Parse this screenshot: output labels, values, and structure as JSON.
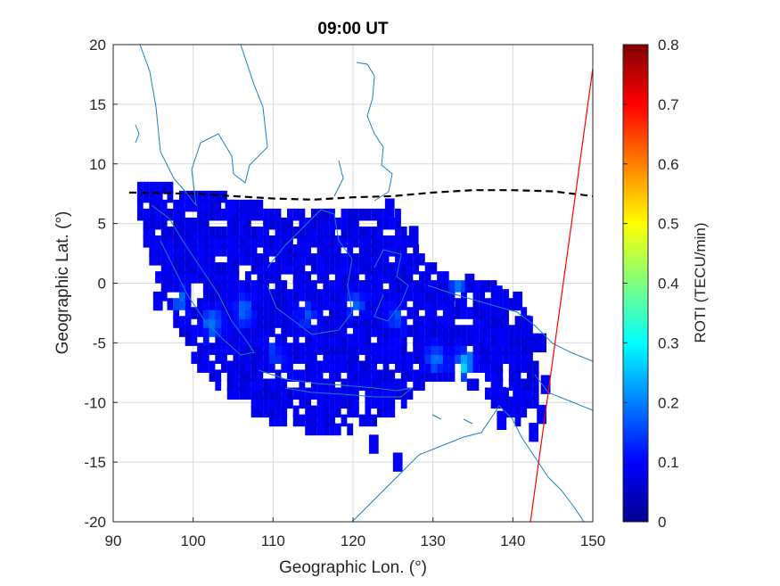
{
  "chart_data": {
    "type": "heatmap",
    "title": "09:00 UT",
    "xlabel": "Geographic Lon. (°)",
    "ylabel": "Geographic Lat. (°)",
    "colorbar_label": "ROTI (TECU/min)",
    "xlim": [
      90,
      150
    ],
    "ylim": [
      -20,
      20
    ],
    "clim": [
      0,
      0.8
    ],
    "colormap": "jet",
    "grid": true,
    "x_ticks": [
      "90",
      "100",
      "110",
      "120",
      "130",
      "140",
      "150"
    ],
    "y_ticks": [
      "20",
      "15",
      "10",
      "5",
      "0",
      "-5",
      "-10",
      "-15",
      "-20"
    ],
    "colorbar_ticks": [
      "0.8",
      "0.7",
      "0.6",
      "0.5",
      "0.4",
      "0.3",
      "0.2",
      "0.1",
      "0"
    ],
    "coastline_color": "#1f7fbf",
    "region": {
      "description_points_lon_lat": [
        [
          92,
          8
        ],
        [
          96,
          8
        ],
        [
          104,
          7
        ],
        [
          110,
          6
        ],
        [
          118,
          6
        ],
        [
          125,
          6
        ],
        [
          128,
          2
        ],
        [
          132,
          0
        ],
        [
          137,
          0
        ],
        [
          142,
          -3
        ],
        [
          143,
          -10
        ],
        [
          140,
          -12
        ],
        [
          135,
          -9
        ],
        [
          130,
          -8
        ],
        [
          125,
          -11
        ],
        [
          118,
          -13
        ],
        [
          110,
          -12
        ],
        [
          104,
          -10
        ],
        [
          100,
          -7
        ],
        [
          97,
          -3
        ],
        [
          94,
          2
        ]
      ],
      "typical_roti": 0.08
    },
    "hotspots": [
      {
        "lon": 102,
        "lat": -3.5,
        "roti": 0.2
      },
      {
        "lon": 106,
        "lat": -2.5,
        "roti": 0.18
      },
      {
        "lon": 114,
        "lat": -3,
        "roti": 0.16
      },
      {
        "lon": 120,
        "lat": -2,
        "roti": 0.17
      },
      {
        "lon": 125,
        "lat": -3,
        "roti": 0.15
      },
      {
        "lon": 133.5,
        "lat": -7,
        "roti": 0.26
      },
      {
        "lon": 133,
        "lat": 0,
        "roti": 0.22
      },
      {
        "lon": 98,
        "lat": -1.5,
        "roti": 0.17
      },
      {
        "lon": 110,
        "lat": -6,
        "roti": 0.14
      },
      {
        "lon": 130,
        "lat": -6.5,
        "roti": 0.18
      }
    ],
    "dashed_line": [
      [
        92,
        7.6
      ],
      [
        100,
        7.5
      ],
      [
        105,
        7.3
      ],
      [
        110,
        7.1
      ],
      [
        115,
        7.0
      ],
      [
        120,
        7.2
      ],
      [
        125,
        7.3
      ],
      [
        130,
        7.6
      ],
      [
        135,
        7.8
      ],
      [
        140,
        7.8
      ],
      [
        145,
        7.7
      ],
      [
        150,
        7.3
      ]
    ],
    "red_line": [
      [
        142.2,
        -20
      ],
      [
        150,
        18
      ]
    ]
  }
}
